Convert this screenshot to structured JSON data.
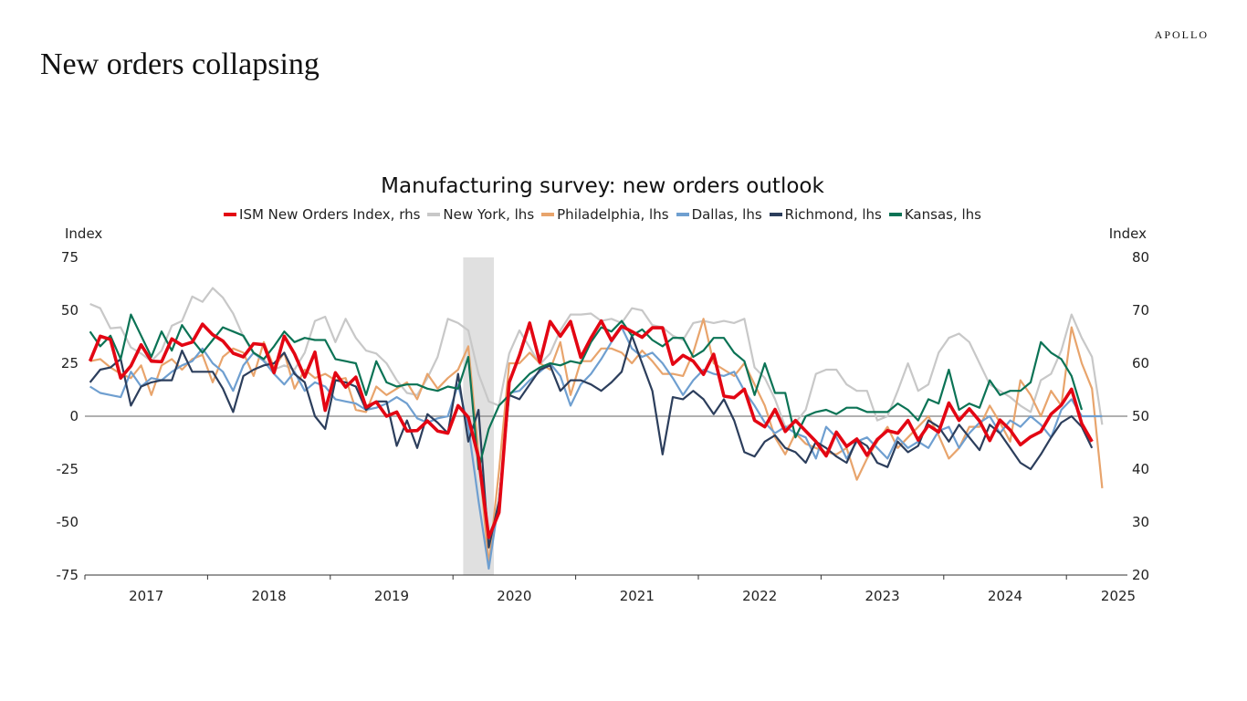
{
  "header": {
    "title": "New orders collapsing",
    "brand": "APOLLO"
  },
  "chart_data": {
    "type": "line",
    "title": "Manufacturing survey: new orders outlook",
    "ylabel": "Index",
    "ylabel_right": "Index",
    "ylim": [
      -75,
      75
    ],
    "ylim_right": [
      20,
      80
    ],
    "yticks": [
      "75",
      "50",
      "25",
      "0",
      "-25",
      "-50",
      "-75"
    ],
    "yticks_right": [
      "80",
      "70",
      "60",
      "50",
      "40",
      "30",
      "20"
    ],
    "xticks": [
      "2017",
      "2018",
      "2019",
      "2020",
      "2021",
      "2022",
      "2023",
      "2024",
      "2025"
    ],
    "start": "2017-01",
    "frequency": "monthly",
    "recession_shading": [
      "2020-02",
      "2020-04"
    ],
    "series": [
      {
        "name": "New York, lhs",
        "axis": "left",
        "color": "#c8c8c8",
        "width": 2.2,
        "values": [
          53,
          51,
          41.5,
          42,
          32.5,
          29.6,
          26,
          31,
          42.7,
          45,
          56.5,
          54,
          60.5,
          56,
          48.5,
          37.6,
          29.6,
          26.7,
          22,
          24,
          22,
          30,
          45,
          47,
          35,
          46,
          37,
          31,
          29.6,
          25,
          17,
          11,
          10,
          18,
          28,
          46,
          44,
          40.5,
          20,
          7,
          5,
          29.6,
          40.5,
          32.5,
          24.5,
          29.6,
          40.5,
          48,
          48,
          48.5,
          45,
          46,
          44,
          51,
          50,
          43,
          42,
          38,
          36,
          44,
          45,
          44,
          45,
          44,
          46,
          23,
          18,
          8,
          -5,
          -3,
          3,
          20,
          22,
          22,
          15,
          12,
          12,
          -2,
          0,
          12,
          25,
          12,
          15,
          30,
          37,
          39,
          35,
          25,
          15,
          12,
          9,
          5,
          2,
          17,
          20,
          31,
          48,
          37,
          28,
          -4
        ]
      },
      {
        "name": "Philadelphia, lhs",
        "axis": "left",
        "color": "#e8a46c",
        "width": 2.2,
        "values": [
          26,
          27,
          23,
          20,
          18,
          24,
          10,
          24,
          27,
          22,
          27,
          29,
          16,
          28,
          32,
          30,
          19,
          35,
          23,
          30,
          13,
          22,
          18,
          20,
          17,
          18,
          3,
          2,
          14,
          10,
          13,
          16,
          8,
          20,
          13,
          18,
          22,
          33,
          -18,
          -70,
          -26,
          25,
          25,
          30,
          25,
          22,
          35,
          10,
          26,
          26,
          32,
          32,
          30,
          25,
          31,
          26,
          20,
          20,
          19,
          30,
          46,
          25,
          22,
          19,
          25,
          15,
          5,
          -10,
          -18,
          -8,
          -13,
          -15,
          -17,
          -18,
          -15,
          -30,
          -20,
          -12,
          -5,
          -15,
          -10,
          -5,
          0,
          -9,
          -20,
          -15,
          -5,
          -5,
          5,
          -3,
          -12,
          17,
          10,
          0,
          12,
          5,
          42,
          25,
          13,
          -34
        ]
      },
      {
        "name": "Dallas, lhs",
        "axis": "left",
        "color": "#6f9fd0",
        "width": 2.2,
        "values": [
          14,
          11,
          10,
          9,
          21,
          14,
          18,
          17,
          21,
          24,
          26,
          32,
          25,
          21,
          12,
          24,
          30,
          26,
          20,
          15,
          21,
          12,
          16,
          14,
          8,
          7,
          6,
          3,
          4,
          6,
          9,
          6,
          -1,
          -3,
          -1,
          0,
          15,
          -5,
          -40,
          -72,
          -40,
          11,
          12,
          17,
          21,
          25,
          19,
          5,
          15,
          20,
          27,
          35,
          42,
          32,
          28,
          30,
          25,
          18,
          10,
          17,
          22,
          20,
          19,
          21,
          12,
          5,
          -3,
          -8,
          -5,
          -8,
          -10,
          -20,
          -5,
          -10,
          -20,
          -12,
          -10,
          -15,
          -20,
          -10,
          -15,
          -12,
          -15,
          -7,
          -5,
          -15,
          -8,
          -3,
          0,
          -8,
          -2,
          -5,
          0,
          -4,
          -10,
          3,
          8,
          0,
          0,
          0
        ]
      },
      {
        "name": "Richmond, lhs",
        "axis": "left",
        "color": "#2c3e5c",
        "width": 2.2,
        "values": [
          16,
          22,
          23,
          27,
          5,
          14,
          16,
          17,
          17,
          31,
          21,
          21,
          21,
          13,
          2,
          19,
          22,
          24,
          25,
          30,
          20,
          16,
          0,
          -6,
          17,
          16,
          14,
          3,
          7,
          7,
          -14,
          -2,
          -15,
          1,
          -3,
          -8,
          20,
          -12,
          3,
          -62,
          -40,
          10,
          8,
          15,
          22,
          24,
          12,
          17,
          17,
          15,
          12,
          16,
          21,
          38,
          25,
          12,
          -18,
          9,
          8,
          12,
          8,
          1,
          8,
          -2,
          -17,
          -19,
          -12,
          -9,
          -15,
          -17,
          -22,
          -12,
          -15,
          -19,
          -22,
          -11,
          -14,
          -22,
          -24,
          -12,
          -17,
          -14,
          -2,
          -5,
          -12,
          -4,
          -10,
          -16,
          -4,
          -8,
          -15,
          -22,
          -25,
          -18,
          -10,
          -3,
          0,
          -5,
          -15
        ]
      },
      {
        "name": "Kansas, lhs",
        "axis": "left",
        "color": "#0b7355",
        "width": 2.2,
        "values": [
          40,
          33,
          38,
          27,
          48,
          38,
          28,
          40,
          31,
          43,
          36,
          30,
          36,
          42,
          40,
          38,
          30,
          27,
          33,
          40,
          35,
          37,
          36,
          36,
          27,
          26,
          25,
          10,
          26,
          16,
          14,
          15,
          15,
          13,
          12,
          14,
          13,
          28,
          -25,
          -6,
          5,
          10,
          15,
          20,
          23,
          25,
          24,
          26,
          25,
          35,
          42,
          40,
          45,
          38,
          41,
          36,
          33,
          37,
          37,
          28,
          31,
          37,
          37,
          30,
          26,
          10,
          25,
          11,
          11,
          -10,
          0,
          2,
          3,
          1,
          4,
          4,
          2,
          2,
          2,
          6,
          3,
          -2,
          8,
          6,
          22,
          3,
          6,
          4,
          17,
          10,
          12,
          12,
          16,
          35,
          30,
          27,
          19,
          3
        ]
      },
      {
        "name": "ISM New Orders Index, rhs",
        "axis": "right",
        "color": "#e30613",
        "width": 3.6,
        "values": [
          60.4,
          65.1,
          64.5,
          57.2,
          59.5,
          63.5,
          60.4,
          60.3,
          64.6,
          63.4,
          64.0,
          67.4,
          65.4,
          64.2,
          61.9,
          61.2,
          63.7,
          63.5,
          58.2,
          65.1,
          61.8,
          57.4,
          62.1,
          51.1,
          58.2,
          55.5,
          57.4,
          51.7,
          52.7,
          50.0,
          50.8,
          47.2,
          47.3,
          49.1,
          47.2,
          46.8,
          52.0,
          49.8,
          42.2,
          27.1,
          31.8,
          56.4,
          61.5,
          67.6,
          60.2,
          67.9,
          65.1,
          67.9,
          61.1,
          64.8,
          68.0,
          64.3,
          67.0,
          66.0,
          64.9,
          66.7,
          66.7,
          59.8,
          61.5,
          60.4,
          57.9,
          61.7,
          53.8,
          53.5,
          55.1,
          49.2,
          48.0,
          51.3,
          47.1,
          49.2,
          47.2,
          45.2,
          42.5,
          47.0,
          44.3,
          45.7,
          42.6,
          45.6,
          47.3,
          46.8,
          49.2,
          45.5,
          48.3,
          47.0,
          52.5,
          49.2,
          51.4,
          49.1,
          45.4,
          49.3,
          47.4,
          44.6,
          46.1,
          47.1,
          50.4,
          52.1,
          55.1,
          48.6,
          45.2
        ]
      }
    ],
    "legend_order": [
      5,
      0,
      1,
      2,
      3,
      4
    ],
    "legend_placement": "top-center",
    "grid": false
  }
}
